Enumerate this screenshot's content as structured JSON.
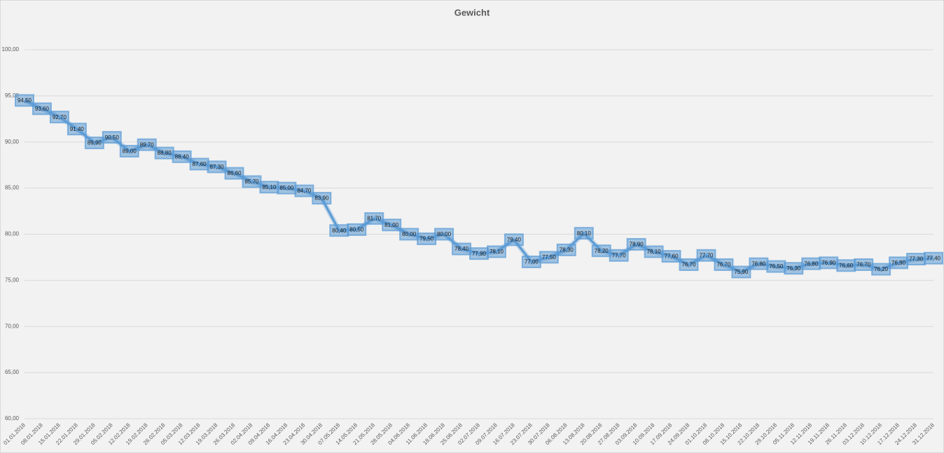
{
  "chart_data": {
    "type": "line",
    "title": "Gewicht",
    "categories": [
      "01.01.2018",
      "08.01.2018",
      "15.01.2018",
      "22.01.2018",
      "29.01.2018",
      "05.02.2018",
      "12.02.2018",
      "19.02.2018",
      "26.02.2018",
      "05.03.2018",
      "12.03.2018",
      "19.03.2018",
      "26.03.2018",
      "02.04.2018",
      "09.04.2018",
      "16.04.2018",
      "23.04.2018",
      "30.04.2018",
      "07.05.2018",
      "14.05.2018",
      "21.05.2018",
      "28.05.2018",
      "04.06.2018",
      "11.06.2018",
      "18.06.2018",
      "25.06.2018",
      "02.07.2018",
      "09.07.2018",
      "16.07.2018",
      "23.07.2018",
      "30.07.2018",
      "06.08.2018",
      "13.08.2018",
      "20.08.2018",
      "27.08.2018",
      "03.09.2018",
      "10.09.2018",
      "17.09.2018",
      "24.09.2018",
      "01.10.2018",
      "08.10.2018",
      "15.10.2018",
      "22.10.2018",
      "29.10.2018",
      "05.11.2018",
      "12.11.2018",
      "19.11.2018",
      "26.11.2018",
      "03.12.2018",
      "10.12.2018",
      "17.12.2018",
      "24.12.2018",
      "31.12.2018"
    ],
    "values": [
      94.5,
      93.6,
      92.7,
      91.4,
      89.9,
      90.5,
      89.0,
      89.7,
      88.8,
      88.4,
      87.6,
      87.3,
      86.6,
      85.7,
      85.1,
      85.0,
      84.7,
      83.9,
      80.4,
      80.5,
      81.7,
      81.0,
      80.0,
      79.5,
      80.0,
      78.4,
      77.9,
      78.1,
      79.4,
      77.0,
      77.5,
      78.3,
      80.1,
      78.2,
      77.7,
      78.9,
      78.1,
      77.6,
      76.7,
      77.7,
      76.7,
      75.9,
      76.8,
      76.5,
      76.3,
      76.8,
      76.9,
      76.6,
      76.7,
      76.2,
      76.9,
      77.3,
      77.4
    ],
    "value_labels": [
      "94,50",
      "93,60",
      "92,70",
      "91,40",
      "89,90",
      "90,50",
      "89,00",
      "89,70",
      "88,80",
      "88,40",
      "87,60",
      "87,30",
      "86,60",
      "85,70",
      "85,10",
      "85,00",
      "84,70",
      "83,90",
      "80,40",
      "80,50",
      "81,70",
      "81,00",
      "80,00",
      "79,50",
      "80,00",
      "78,40",
      "77,90",
      "78,10",
      "79,40",
      "77,00",
      "77,50",
      "78,30",
      "80,10",
      "78,20",
      "77,70",
      "78,90",
      "78,10",
      "77,60",
      "76,70",
      "77,70",
      "76,70",
      "75,90",
      "76,80",
      "76,50",
      "76,30",
      "76,80",
      "76,90",
      "76,60",
      "76,70",
      "76,20",
      "76,90",
      "77,30",
      "77,40"
    ],
    "color": "#5b9bd5",
    "ylim": [
      60,
      100
    ],
    "yticks": [
      {
        "value": 60,
        "label": "60,00"
      },
      {
        "value": 65,
        "label": "65,00"
      },
      {
        "value": 70,
        "label": "70,00"
      },
      {
        "value": 75,
        "label": "75,00"
      },
      {
        "value": 80,
        "label": "80,00"
      },
      {
        "value": 85,
        "label": "85,00"
      },
      {
        "value": 90,
        "label": "90,00"
      },
      {
        "value": 95,
        "label": "95,00"
      },
      {
        "value": 100,
        "label": "100,00"
      }
    ],
    "grid": true
  }
}
